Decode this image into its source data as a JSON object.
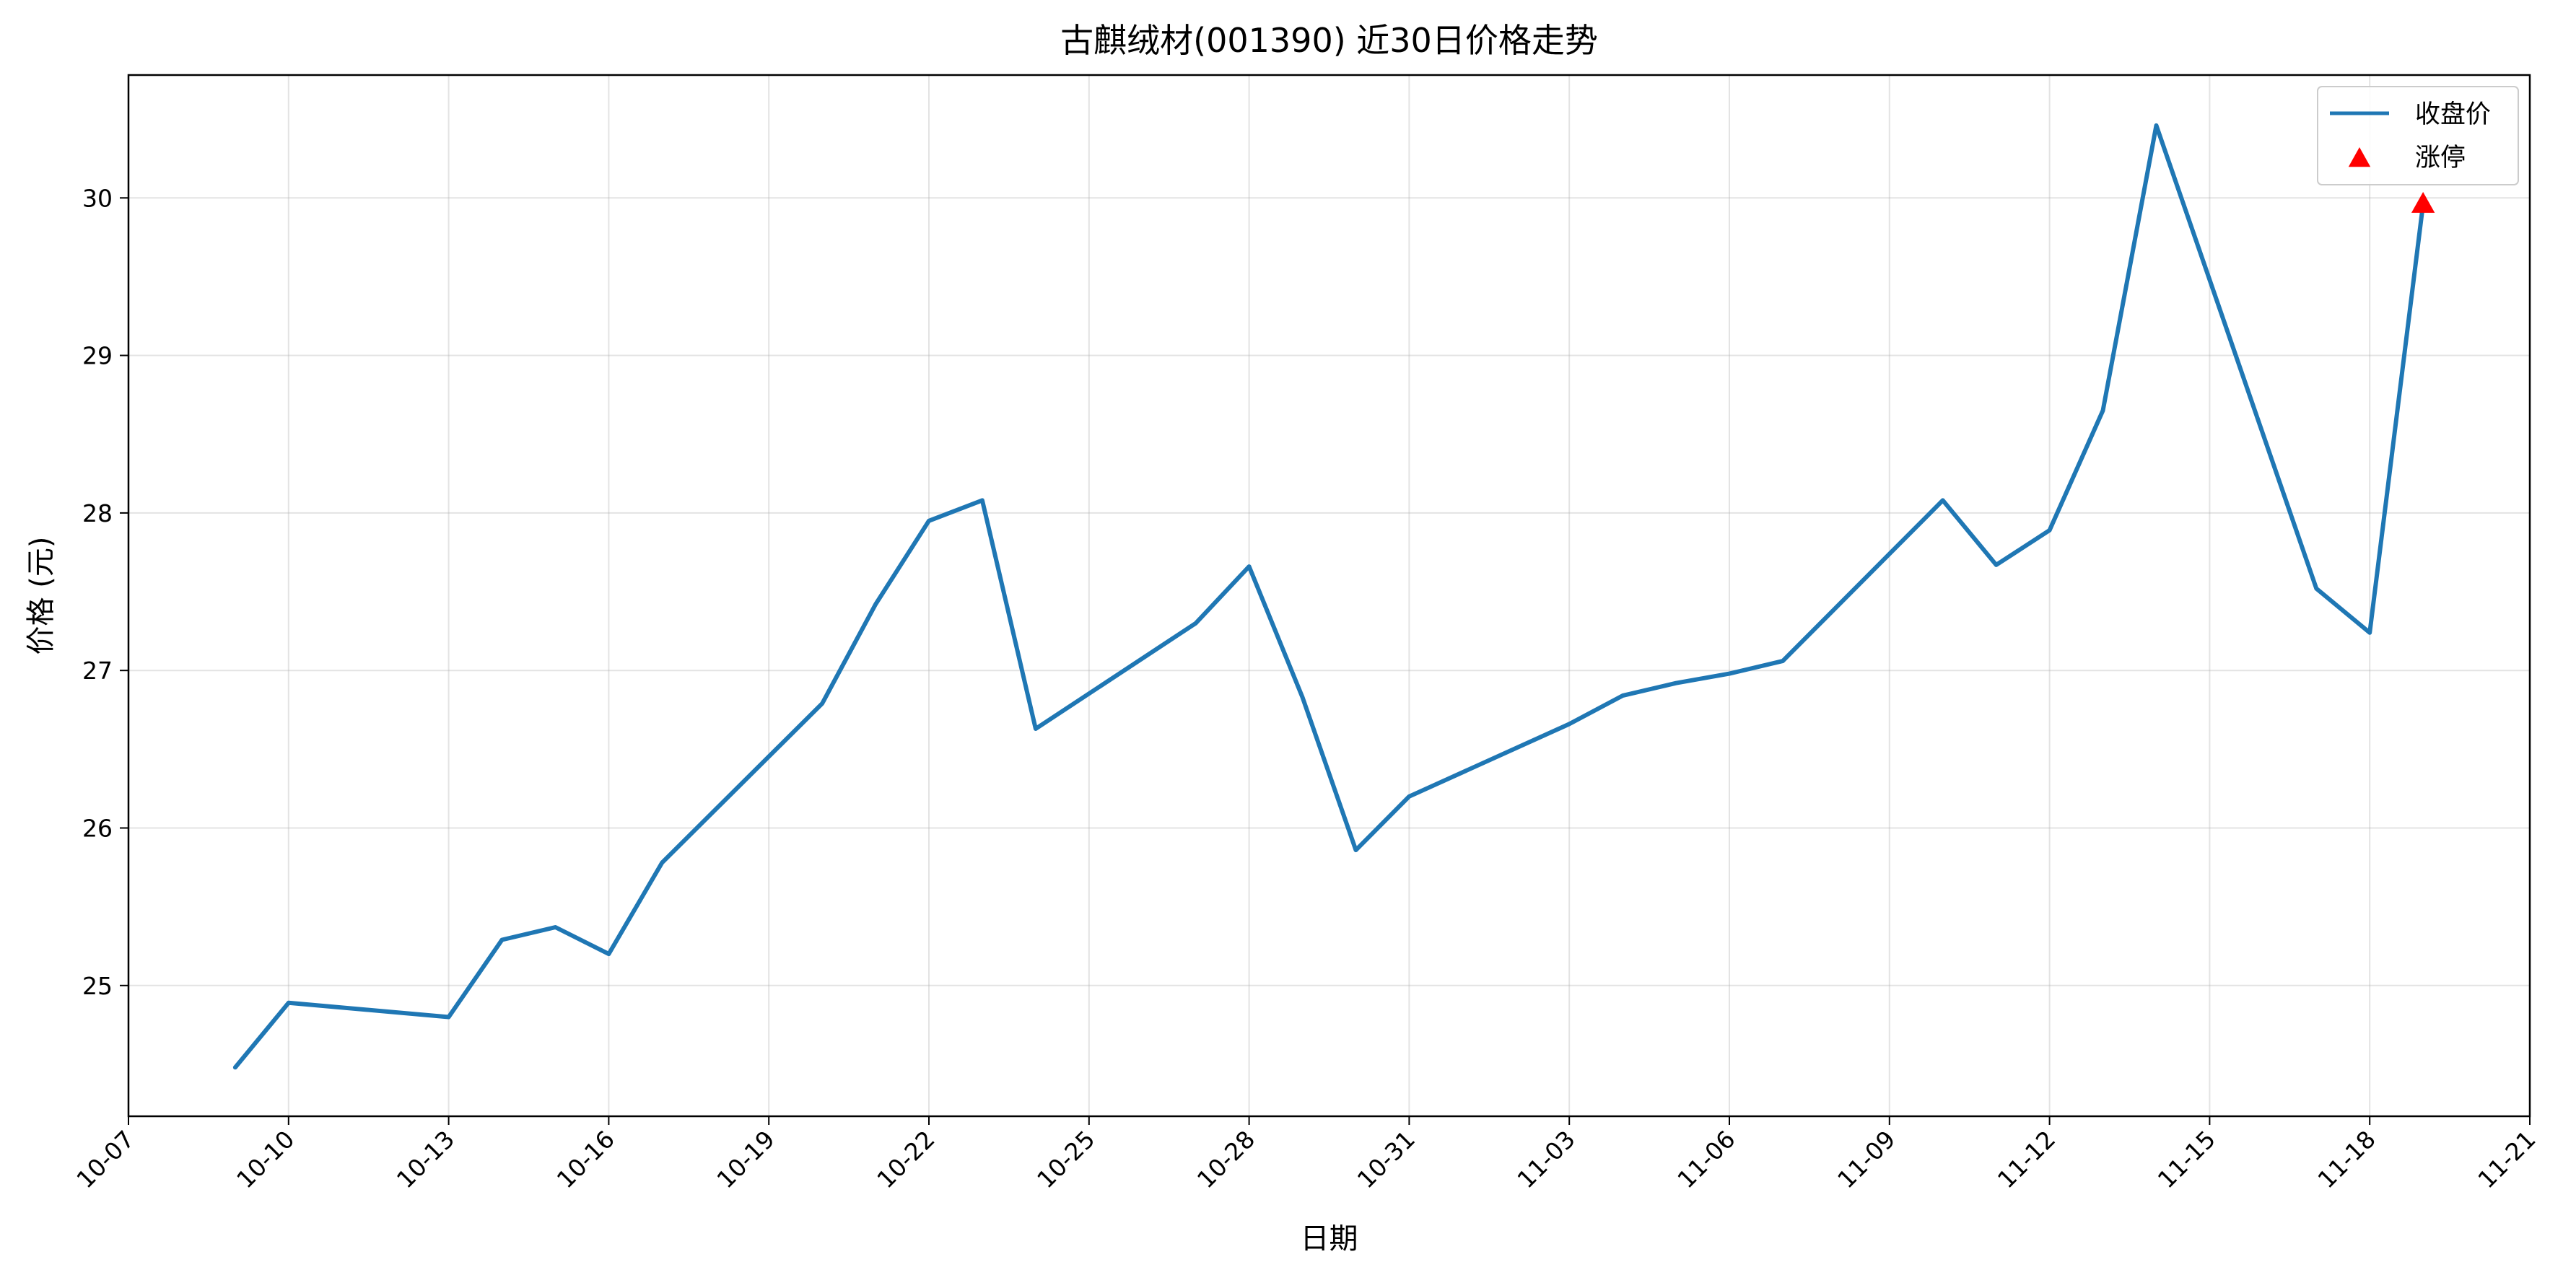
{
  "chart_data": {
    "type": "line",
    "title": "古麒绒材(001390) 近30日价格走势",
    "xlabel": "日期",
    "ylabel": "价格 (元)",
    "x_tick_labels": [
      "10-07",
      "10-10",
      "10-13",
      "10-16",
      "10-19",
      "10-22",
      "10-25",
      "10-28",
      "10-31",
      "11-03",
      "11-06",
      "11-09",
      "11-12",
      "11-15",
      "11-18",
      "11-21"
    ],
    "y_tick_labels": [
      "25",
      "26",
      "27",
      "28",
      "29",
      "30"
    ],
    "y_ticks": [
      25,
      26,
      27,
      28,
      29,
      30
    ],
    "xlim": [
      "10-07",
      "11-21"
    ],
    "ylim": [
      24.17,
      30.78
    ],
    "grid": true,
    "legend_position": "top-right",
    "series": [
      {
        "name": "收盘价",
        "color": "#1f77b4",
        "x": [
          "10-09",
          "10-10",
          "10-13",
          "10-14",
          "10-15",
          "10-16",
          "10-17",
          "10-20",
          "10-21",
          "10-22",
          "10-23",
          "10-24",
          "10-27",
          "10-28",
          "10-29",
          "10-30",
          "10-31",
          "11-03",
          "11-04",
          "11-05",
          "11-06",
          "11-07",
          "11-10",
          "11-11",
          "11-12",
          "11-13",
          "11-14",
          "11-17",
          "11-18",
          "11-19"
        ],
        "values": [
          24.48,
          24.89,
          24.8,
          25.29,
          25.37,
          25.2,
          25.78,
          26.79,
          27.42,
          27.95,
          28.08,
          26.63,
          27.3,
          27.66,
          26.83,
          25.86,
          26.2,
          26.66,
          26.84,
          26.92,
          26.98,
          27.06,
          28.08,
          27.67,
          27.89,
          28.65,
          30.46,
          27.52,
          27.24,
          29.96
        ]
      },
      {
        "name": "涨停",
        "type": "scatter",
        "marker": "triangle-up",
        "color": "#ff0000",
        "x": [
          "11-19"
        ],
        "values": [
          29.96
        ]
      }
    ]
  }
}
